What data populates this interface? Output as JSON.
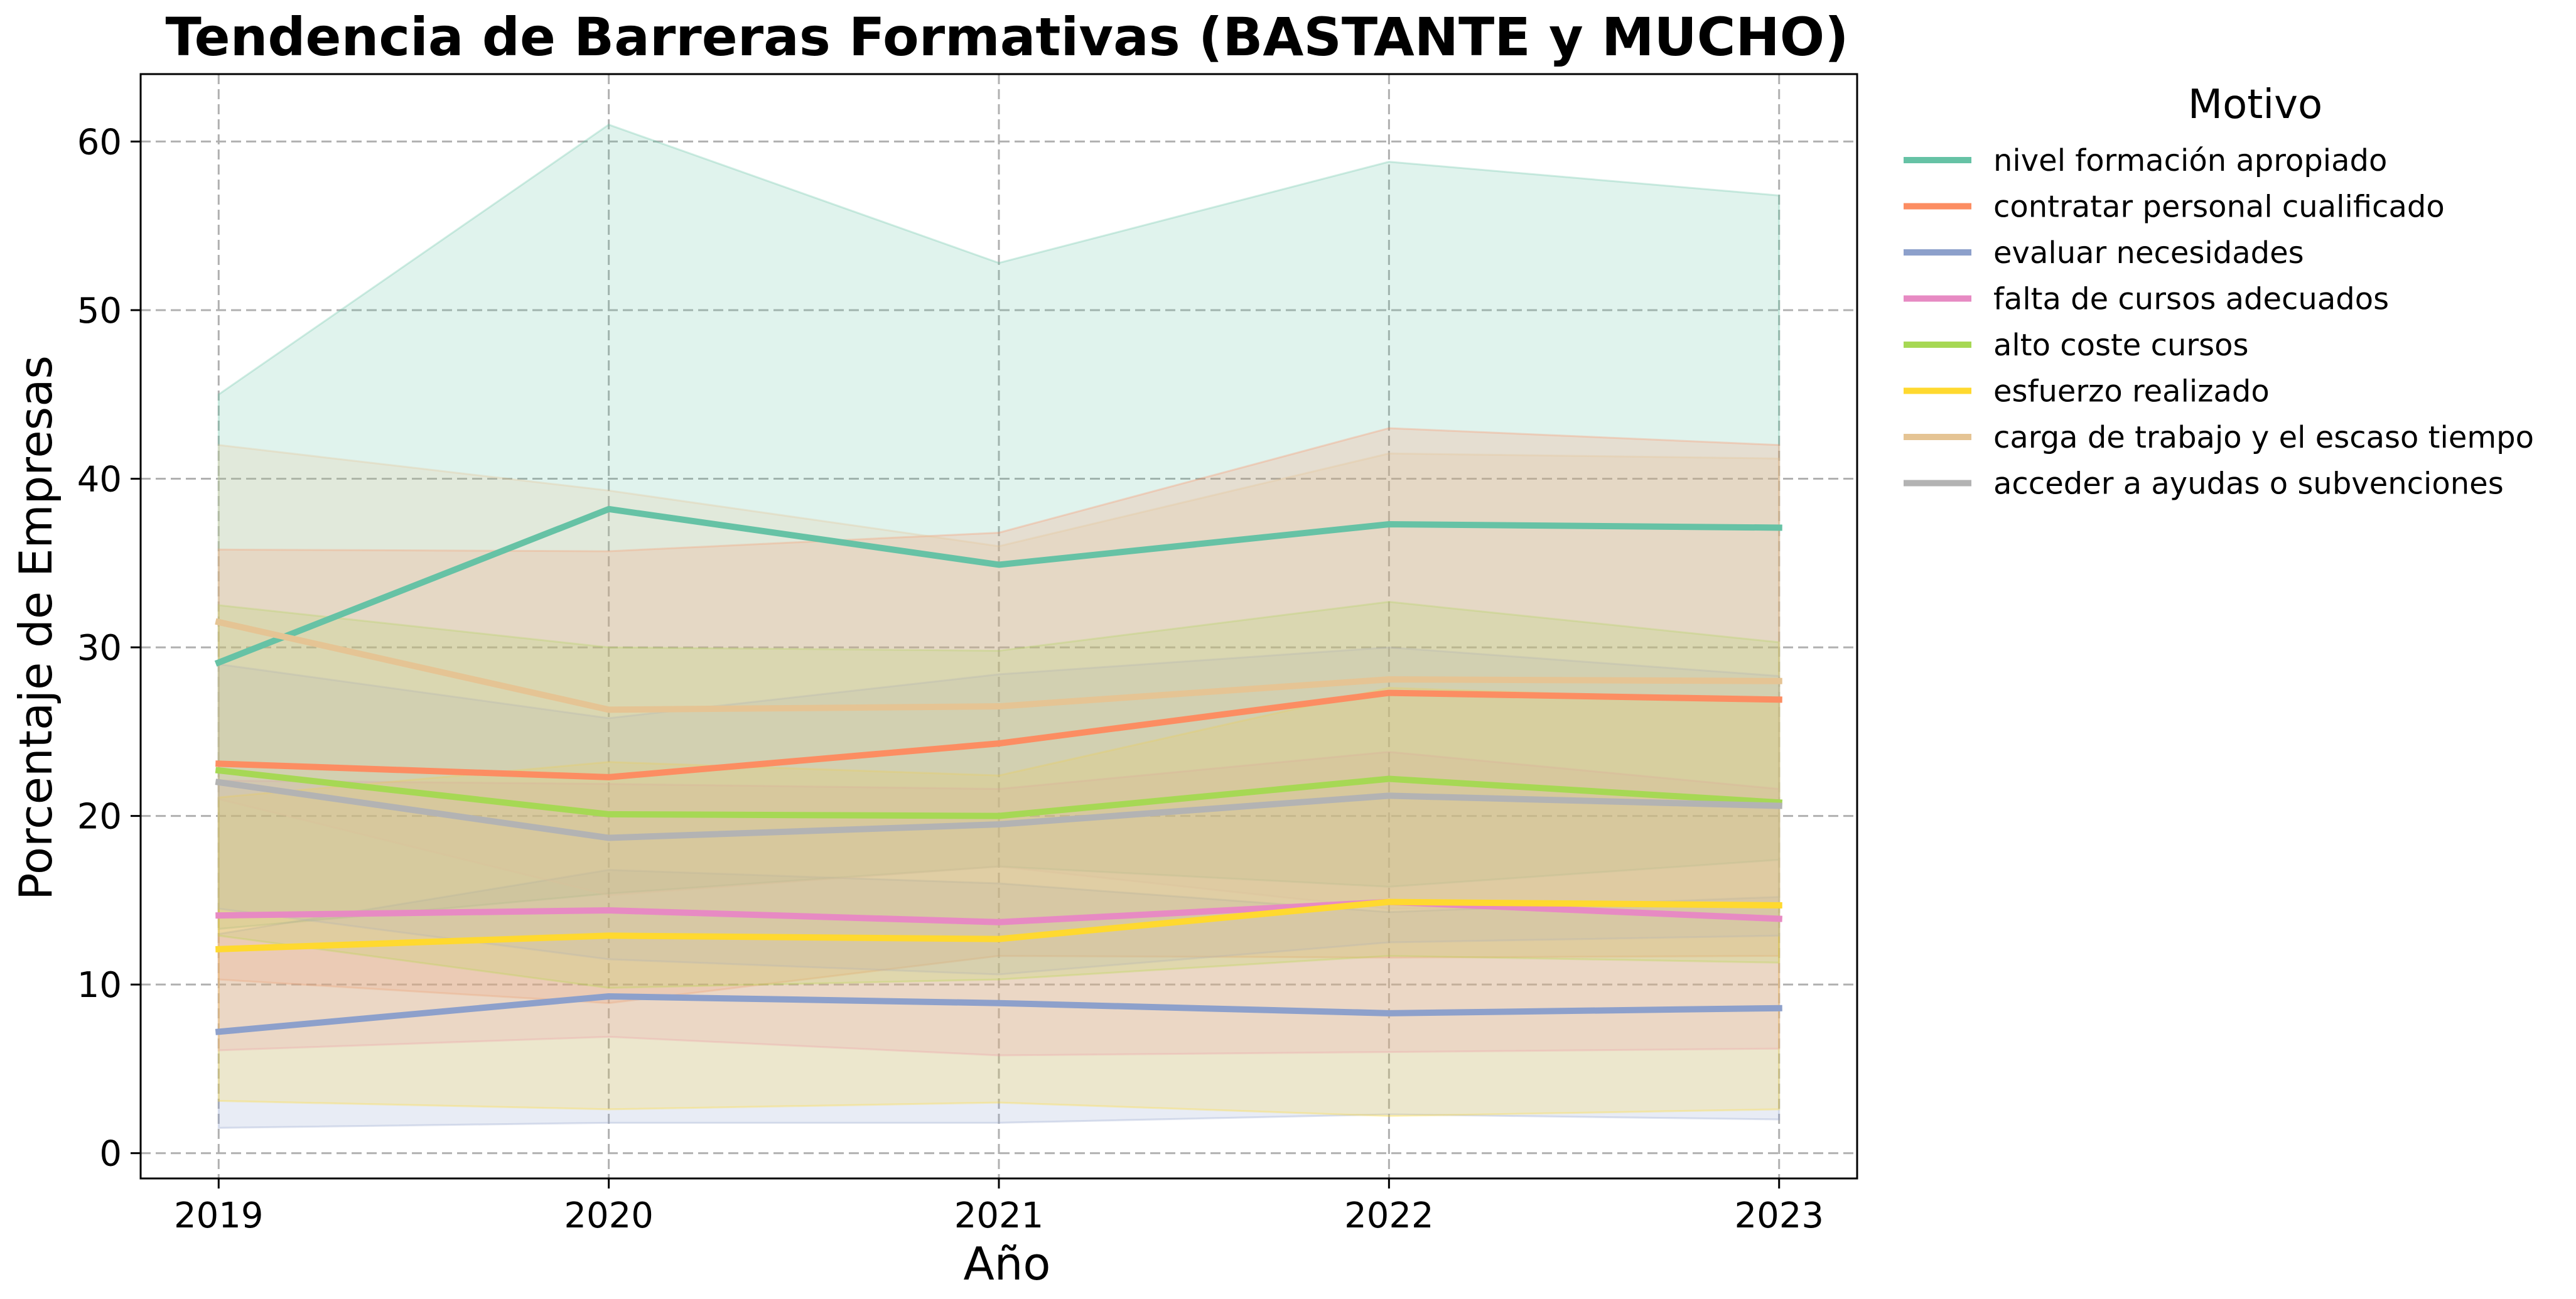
{
  "chart_data": {
    "type": "line",
    "title": "Tendencia de Barreras Formativas (BASTANTE y MUCHO)",
    "xlabel": "Año",
    "ylabel": "Porcentaje de Empresas",
    "x": [
      2019,
      2020,
      2021,
      2022,
      2023
    ],
    "xticks": [
      "2019",
      "2020",
      "2021",
      "2022",
      "2023"
    ],
    "yticks": [
      "0",
      "10",
      "20",
      "30",
      "40",
      "50",
      "60"
    ],
    "xlim": [
      2018.8,
      2023.2
    ],
    "ylim": [
      -1.5,
      64
    ],
    "grid": true,
    "legend_title": "Motivo",
    "legend_position": "outside-right-top",
    "series": [
      {
        "name": "nivel formación apropiado",
        "color": "#66c2a5",
        "values": [
          29.1,
          38.2,
          34.9,
          37.3,
          37.1
        ],
        "band_low": [
          13.3,
          15.4,
          17.0,
          15.8,
          17.4
        ],
        "band_high": [
          45.0,
          61.0,
          52.8,
          58.8,
          56.8
        ]
      },
      {
        "name": "contratar personal cualificado",
        "color": "#fc8d62",
        "values": [
          23.1,
          22.3,
          24.3,
          27.3,
          26.9
        ],
        "band_low": [
          10.3,
          8.9,
          11.7,
          11.6,
          11.7
        ],
        "band_high": [
          35.8,
          35.7,
          36.8,
          43.0,
          42.0
        ]
      },
      {
        "name": "evaluar necesidades",
        "color": "#8da0cb",
        "values": [
          7.2,
          9.3,
          8.9,
          8.3,
          8.6
        ],
        "band_low": [
          1.5,
          1.8,
          1.8,
          2.3,
          2.0
        ],
        "band_high": [
          13.0,
          16.8,
          16.0,
          14.3,
          15.2
        ]
      },
      {
        "name": "falta de cursos adecuados",
        "color": "#e78ac3",
        "values": [
          14.1,
          14.4,
          13.7,
          14.9,
          13.9
        ],
        "band_low": [
          6.1,
          6.9,
          5.8,
          6.0,
          6.2
        ],
        "band_high": [
          22.1,
          21.9,
          21.6,
          23.8,
          21.6
        ]
      },
      {
        "name": "alto coste cursos",
        "color": "#a6d854",
        "values": [
          22.7,
          20.1,
          20.0,
          22.2,
          20.8
        ],
        "band_low": [
          12.9,
          9.8,
          10.3,
          11.7,
          11.3
        ],
        "band_high": [
          32.5,
          30.0,
          29.8,
          32.7,
          30.3
        ]
      },
      {
        "name": "esfuerzo realizado",
        "color": "#ffd92f",
        "values": [
          12.1,
          12.9,
          12.7,
          14.9,
          14.7
        ],
        "band_low": [
          3.1,
          2.6,
          3.0,
          2.2,
          2.6
        ],
        "band_high": [
          21.1,
          23.2,
          22.4,
          27.6,
          26.8
        ]
      },
      {
        "name": "carga de trabajo y el escaso tiempo",
        "color": "#e5c494",
        "values": [
          31.5,
          26.3,
          26.5,
          28.1,
          28.0
        ],
        "band_low": [
          21.0,
          15.3,
          17.0,
          14.5,
          14.7
        ],
        "band_high": [
          42.0,
          39.3,
          36.0,
          41.5,
          41.2
        ]
      },
      {
        "name": "acceder a ayudas o subvenciones",
        "color": "#b3b3b3",
        "values": [
          22.0,
          18.7,
          19.5,
          21.2,
          20.6
        ],
        "band_low": [
          14.5,
          11.5,
          10.6,
          12.5,
          12.9
        ],
        "band_high": [
          29.0,
          25.8,
          28.4,
          30.0,
          28.3
        ]
      }
    ]
  }
}
